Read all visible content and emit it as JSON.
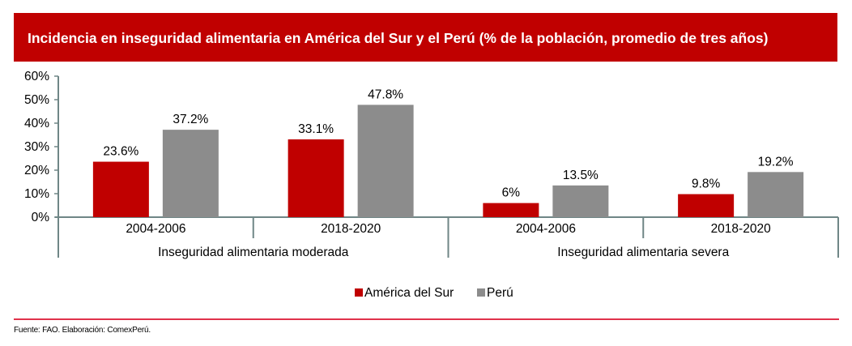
{
  "header": {
    "title": "Incidencia en inseguridad alimentaria en América del Sur y el Perú (% de la población, promedio de tres años)"
  },
  "colors": {
    "header_bg": "#c00000",
    "america_del_sur": "#c00000",
    "peru": "#8c8c8c",
    "axis": "#6f8686",
    "footer_line": "#e0324b"
  },
  "chart_data": {
    "type": "bar",
    "title": "Incidencia en inseguridad alimentaria en América del Sur y el Perú (% de la población, promedio de tres años)",
    "xlabel": "",
    "ylabel": "",
    "ylim": [
      0,
      60
    ],
    "y_ticks": [
      "0%",
      "10%",
      "20%",
      "30%",
      "40%",
      "50%",
      "60%"
    ],
    "y_tick_values": [
      0,
      10,
      20,
      30,
      40,
      50,
      60
    ],
    "grid": false,
    "legend_position": "bottom-center",
    "groups": [
      {
        "label": "Inseguridad alimentaria moderada",
        "categories": [
          "2004-2006",
          "2018-2020"
        ]
      },
      {
        "label": "Inseguridad alimentaria severa",
        "categories": [
          "2004-2006",
          "2018-2020"
        ]
      }
    ],
    "categories": [
      "2004-2006",
      "2018-2020",
      "2004-2006",
      "2018-2020"
    ],
    "series": [
      {
        "name": "América del Sur",
        "color": "#c00000",
        "values": [
          23.6,
          33.1,
          6,
          9.8
        ],
        "labels": [
          "23.6%",
          "33.1%",
          "6%",
          "9.8%"
        ]
      },
      {
        "name": "Perú",
        "color": "#8c8c8c",
        "values": [
          37.2,
          47.8,
          13.5,
          19.2
        ],
        "labels": [
          "37.2%",
          "47.8%",
          "13.5%",
          "19.2%"
        ]
      }
    ]
  },
  "footer": {
    "source": "Fuente: FAO. Elaboración: ComexPerú."
  }
}
